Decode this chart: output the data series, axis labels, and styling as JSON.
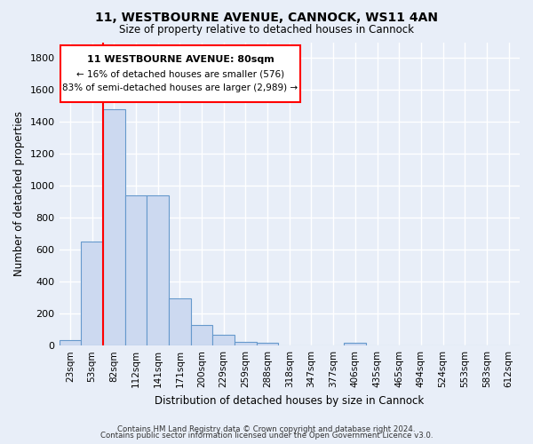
{
  "title": "11, WESTBOURNE AVENUE, CANNOCK, WS11 4AN",
  "subtitle": "Size of property relative to detached houses in Cannock",
  "xlabel": "Distribution of detached houses by size in Cannock",
  "ylabel": "Number of detached properties",
  "bin_labels": [
    "23sqm",
    "53sqm",
    "82sqm",
    "112sqm",
    "141sqm",
    "171sqm",
    "200sqm",
    "229sqm",
    "259sqm",
    "288sqm",
    "318sqm",
    "347sqm",
    "377sqm",
    "406sqm",
    "435sqm",
    "465sqm",
    "494sqm",
    "524sqm",
    "553sqm",
    "583sqm",
    "612sqm"
  ],
  "bar_values": [
    35,
    650,
    1480,
    940,
    940,
    295,
    130,
    65,
    25,
    20,
    0,
    0,
    0,
    15,
    0,
    0,
    0,
    0,
    0,
    0,
    0
  ],
  "bar_color": "#ccd9f0",
  "bar_edge_color": "#6699cc",
  "red_line_index": 2,
  "annotation_line1": "11 WESTBOURNE AVENUE: 80sqm",
  "annotation_line2": "← 16% of detached houses are smaller (576)",
  "annotation_line3": "83% of semi-detached houses are larger (2,989) →",
  "ylim": [
    0,
    1900
  ],
  "yticks": [
    0,
    200,
    400,
    600,
    800,
    1000,
    1200,
    1400,
    1600,
    1800
  ],
  "footer_line1": "Contains HM Land Registry data © Crown copyright and database right 2024.",
  "footer_line2": "Contains public sector information licensed under the Open Government Licence v3.0.",
  "bg_color": "#e8eef8",
  "plot_bg_color": "#e8eef8",
  "grid_color": "#ffffff"
}
